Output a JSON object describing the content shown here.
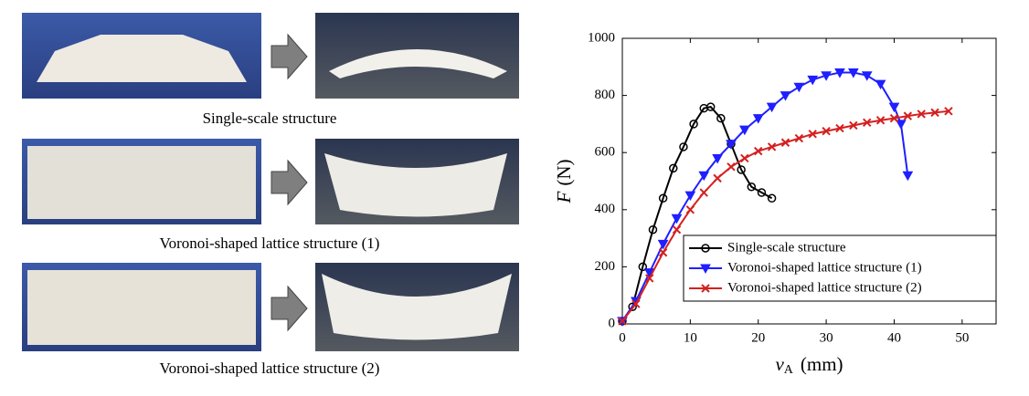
{
  "panels": [
    {
      "caption": "Single-scale structure"
    },
    {
      "caption": "Voronoi-shaped lattice structure (1)"
    },
    {
      "caption": "Voronoi-shaped lattice structure (2)"
    }
  ],
  "chart_data": {
    "type": "line",
    "xlabel": {
      "symbol": "v",
      "subscript": "A",
      "unit": "(mm)"
    },
    "ylabel": {
      "symbol": "F",
      "unit": "(N)"
    },
    "xlim": [
      0,
      55
    ],
    "ylim": [
      0,
      1000
    ],
    "xticks": [
      0,
      10,
      20,
      30,
      40,
      50
    ],
    "yticks": [
      0,
      200,
      400,
      600,
      800,
      1000
    ],
    "legend": "lower right",
    "grid": false,
    "series": [
      {
        "name": "Single-scale structure",
        "color": "#000000",
        "marker": "circle",
        "x": [
          0,
          1.5,
          3,
          4.5,
          6,
          7.5,
          9,
          10.5,
          12,
          13,
          14.5,
          16,
          17.5,
          19,
          20.5,
          22
        ],
        "values": [
          10,
          60,
          200,
          330,
          440,
          545,
          620,
          700,
          755,
          760,
          720,
          630,
          540,
          480,
          460,
          440
        ]
      },
      {
        "name": "Voronoi-shaped lattice structure (1)",
        "color": "#1f1fff",
        "marker": "triangle-down",
        "x": [
          0,
          2,
          4,
          6,
          8,
          10,
          12,
          14,
          16,
          18,
          20,
          22,
          24,
          26,
          28,
          30,
          32,
          34,
          36,
          38,
          40,
          41,
          42
        ],
        "values": [
          10,
          80,
          180,
          280,
          370,
          450,
          520,
          580,
          630,
          680,
          720,
          760,
          800,
          830,
          855,
          870,
          880,
          880,
          870,
          840,
          760,
          700,
          520
        ]
      },
      {
        "name": "Voronoi-shaped lattice structure (2)",
        "color": "#d42020",
        "marker": "x",
        "x": [
          0,
          2,
          4,
          6,
          8,
          10,
          12,
          14,
          16,
          18,
          20,
          22,
          24,
          26,
          28,
          30,
          32,
          34,
          36,
          38,
          40,
          42,
          44,
          46,
          48
        ],
        "values": [
          10,
          70,
          160,
          250,
          330,
          400,
          460,
          510,
          550,
          580,
          605,
          620,
          635,
          650,
          665,
          675,
          685,
          695,
          705,
          713,
          720,
          728,
          735,
          740,
          745
        ]
      }
    ]
  }
}
